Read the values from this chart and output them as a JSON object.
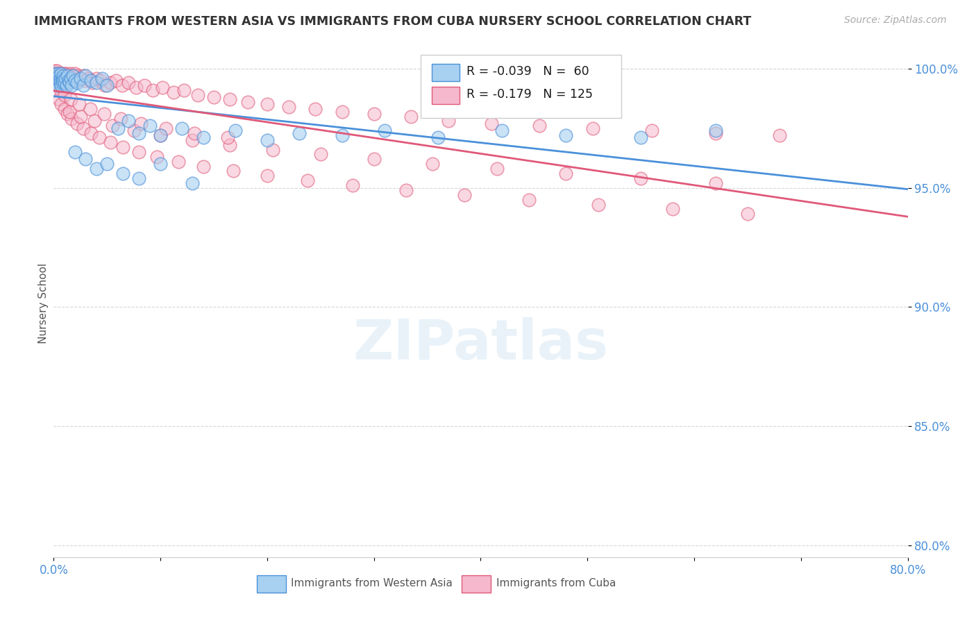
{
  "title": "IMMIGRANTS FROM WESTERN ASIA VS IMMIGRANTS FROM CUBA NURSERY SCHOOL CORRELATION CHART",
  "source": "Source: ZipAtlas.com",
  "ylabel": "Nursery School",
  "xlim": [
    0.0,
    0.8
  ],
  "ylim": [
    0.795,
    1.008
  ],
  "yticks": [
    0.8,
    0.85,
    0.9,
    0.95,
    1.0
  ],
  "ytick_labels": [
    "80.0%",
    "85.0%",
    "90.0%",
    "95.0%",
    "100.0%"
  ],
  "xticks": [
    0.0,
    0.1,
    0.2,
    0.3,
    0.4,
    0.5,
    0.6,
    0.7,
    0.8
  ],
  "xtick_labels": [
    "0.0%",
    "",
    "",
    "",
    "",
    "",
    "",
    "",
    "80.0%"
  ],
  "legend_R1": "-0.039",
  "legend_N1": "60",
  "legend_R2": "-0.179",
  "legend_N2": "125",
  "color_blue": "#a8d0f0",
  "color_pink": "#f5b8cc",
  "color_blue_line": "#4a90d9",
  "color_pink_line": "#e05878",
  "axis_color": "#4a90d9",
  "blue_scatter_x": [
    0.001,
    0.002,
    0.002,
    0.003,
    0.003,
    0.004,
    0.004,
    0.005,
    0.005,
    0.006,
    0.006,
    0.007,
    0.007,
    0.008,
    0.008,
    0.009,
    0.009,
    0.01,
    0.011,
    0.012,
    0.013,
    0.014,
    0.015,
    0.016,
    0.017,
    0.018,
    0.02,
    0.022,
    0.025,
    0.028,
    0.03,
    0.035,
    0.04,
    0.045,
    0.05,
    0.06,
    0.07,
    0.08,
    0.09,
    0.1,
    0.12,
    0.14,
    0.17,
    0.2,
    0.23,
    0.27,
    0.31,
    0.36,
    0.42,
    0.48,
    0.55,
    0.62,
    0.02,
    0.03,
    0.04,
    0.05,
    0.065,
    0.08,
    0.1,
    0.13
  ],
  "blue_scatter_y": [
    0.998,
    0.997,
    0.995,
    0.996,
    0.994,
    0.998,
    0.993,
    0.997,
    0.995,
    0.996,
    0.994,
    0.998,
    0.993,
    0.996,
    0.994,
    0.997,
    0.995,
    0.994,
    0.996,
    0.993,
    0.997,
    0.995,
    0.994,
    0.996,
    0.993,
    0.997,
    0.995,
    0.994,
    0.996,
    0.993,
    0.997,
    0.995,
    0.994,
    0.996,
    0.993,
    0.975,
    0.978,
    0.973,
    0.976,
    0.972,
    0.975,
    0.971,
    0.974,
    0.97,
    0.973,
    0.972,
    0.974,
    0.971,
    0.974,
    0.972,
    0.971,
    0.974,
    0.965,
    0.962,
    0.958,
    0.96,
    0.956,
    0.954,
    0.96,
    0.952
  ],
  "pink_scatter_x": [
    0.001,
    0.001,
    0.002,
    0.002,
    0.002,
    0.003,
    0.003,
    0.003,
    0.004,
    0.004,
    0.004,
    0.005,
    0.005,
    0.005,
    0.006,
    0.006,
    0.007,
    0.007,
    0.008,
    0.008,
    0.009,
    0.009,
    0.01,
    0.01,
    0.011,
    0.012,
    0.013,
    0.014,
    0.015,
    0.016,
    0.017,
    0.018,
    0.019,
    0.02,
    0.021,
    0.022,
    0.024,
    0.026,
    0.028,
    0.03,
    0.033,
    0.036,
    0.04,
    0.044,
    0.048,
    0.053,
    0.058,
    0.064,
    0.07,
    0.077,
    0.085,
    0.093,
    0.102,
    0.112,
    0.122,
    0.135,
    0.15,
    0.165,
    0.182,
    0.2,
    0.22,
    0.245,
    0.27,
    0.3,
    0.335,
    0.37,
    0.41,
    0.455,
    0.505,
    0.56,
    0.62,
    0.68,
    0.005,
    0.007,
    0.01,
    0.013,
    0.017,
    0.022,
    0.028,
    0.035,
    0.043,
    0.053,
    0.065,
    0.08,
    0.097,
    0.117,
    0.14,
    0.168,
    0.2,
    0.238,
    0.28,
    0.33,
    0.385,
    0.445,
    0.51,
    0.58,
    0.65,
    0.015,
    0.025,
    0.038,
    0.055,
    0.075,
    0.1,
    0.13,
    0.165,
    0.205,
    0.25,
    0.3,
    0.355,
    0.415,
    0.48,
    0.55,
    0.62,
    0.003,
    0.006,
    0.01,
    0.016,
    0.024,
    0.034,
    0.047,
    0.063,
    0.082,
    0.105,
    0.132,
    0.163
  ],
  "pink_scatter_y": [
    0.999,
    0.998,
    0.998,
    0.997,
    0.996,
    0.999,
    0.997,
    0.996,
    0.998,
    0.997,
    0.995,
    0.998,
    0.997,
    0.995,
    0.998,
    0.996,
    0.997,
    0.995,
    0.998,
    0.996,
    0.997,
    0.995,
    0.998,
    0.996,
    0.997,
    0.998,
    0.996,
    0.997,
    0.995,
    0.998,
    0.996,
    0.997,
    0.995,
    0.998,
    0.996,
    0.997,
    0.995,
    0.996,
    0.997,
    0.995,
    0.996,
    0.994,
    0.996,
    0.995,
    0.993,
    0.994,
    0.995,
    0.993,
    0.994,
    0.992,
    0.993,
    0.991,
    0.992,
    0.99,
    0.991,
    0.989,
    0.988,
    0.987,
    0.986,
    0.985,
    0.984,
    0.983,
    0.982,
    0.981,
    0.98,
    0.978,
    0.977,
    0.976,
    0.975,
    0.974,
    0.973,
    0.972,
    0.987,
    0.985,
    0.983,
    0.981,
    0.979,
    0.977,
    0.975,
    0.973,
    0.971,
    0.969,
    0.967,
    0.965,
    0.963,
    0.961,
    0.959,
    0.957,
    0.955,
    0.953,
    0.951,
    0.949,
    0.947,
    0.945,
    0.943,
    0.941,
    0.939,
    0.982,
    0.98,
    0.978,
    0.976,
    0.974,
    0.972,
    0.97,
    0.968,
    0.966,
    0.964,
    0.962,
    0.96,
    0.958,
    0.956,
    0.954,
    0.952,
    0.993,
    0.991,
    0.989,
    0.987,
    0.985,
    0.983,
    0.981,
    0.979,
    0.977,
    0.975,
    0.973,
    0.971
  ]
}
